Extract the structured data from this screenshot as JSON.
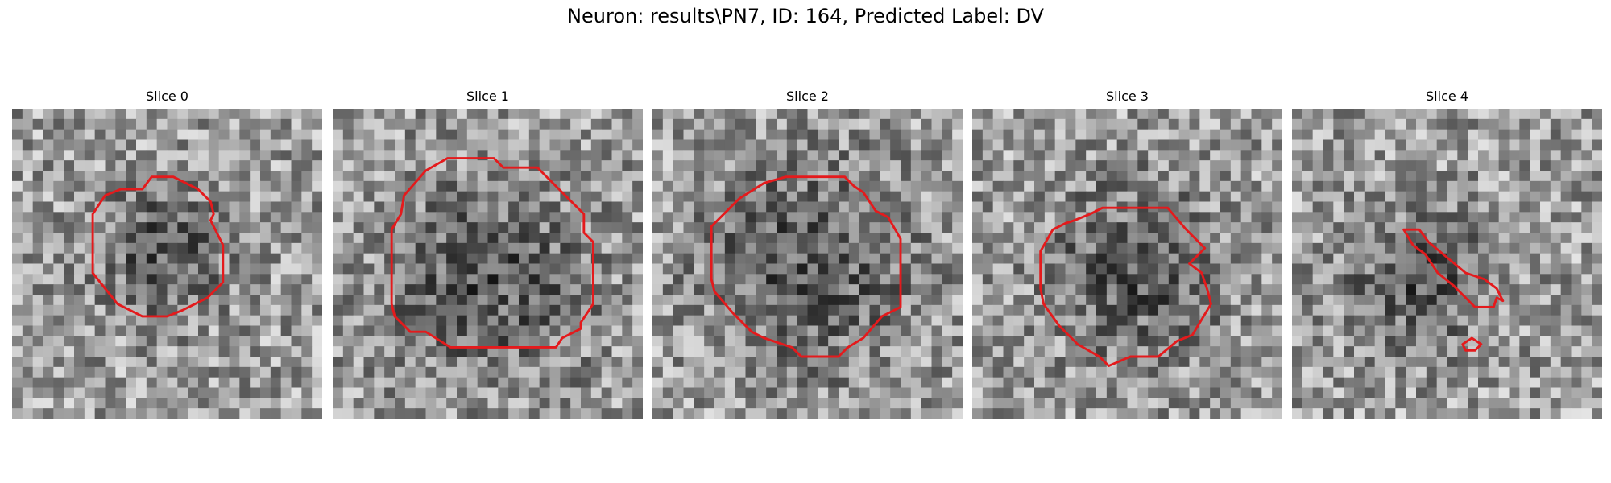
{
  "figure": {
    "title": "Neuron: results\\PN7, ID: 164, Predicted Label: DV",
    "contour_color": "#e41a1c",
    "panels": [
      {
        "title": "Slice 0",
        "seed": 11,
        "dark_blob": [
          0.48,
          0.46,
          0.2
        ],
        "contour": [
          [
            0.45,
            0.22
          ],
          [
            0.52,
            0.22
          ],
          [
            0.6,
            0.26
          ],
          [
            0.64,
            0.3
          ],
          [
            0.65,
            0.34
          ],
          [
            0.64,
            0.36
          ],
          [
            0.68,
            0.44
          ],
          [
            0.68,
            0.56
          ],
          [
            0.63,
            0.61
          ],
          [
            0.55,
            0.65
          ],
          [
            0.5,
            0.67
          ],
          [
            0.42,
            0.67
          ],
          [
            0.34,
            0.63
          ],
          [
            0.3,
            0.58
          ],
          [
            0.26,
            0.53
          ],
          [
            0.26,
            0.34
          ],
          [
            0.3,
            0.28
          ],
          [
            0.35,
            0.26
          ],
          [
            0.42,
            0.26
          ]
        ]
      },
      {
        "title": "Slice 1",
        "seed": 27,
        "dark_blob": [
          0.5,
          0.55,
          0.32
        ],
        "contour": [
          [
            0.37,
            0.16
          ],
          [
            0.52,
            0.16
          ],
          [
            0.55,
            0.19
          ],
          [
            0.66,
            0.19
          ],
          [
            0.72,
            0.25
          ],
          [
            0.81,
            0.34
          ],
          [
            0.81,
            0.4
          ],
          [
            0.84,
            0.43
          ],
          [
            0.84,
            0.63
          ],
          [
            0.8,
            0.69
          ],
          [
            0.8,
            0.71
          ],
          [
            0.74,
            0.74
          ],
          [
            0.72,
            0.77
          ],
          [
            0.67,
            0.77
          ],
          [
            0.6,
            0.77
          ],
          [
            0.51,
            0.77
          ],
          [
            0.38,
            0.77
          ],
          [
            0.3,
            0.72
          ],
          [
            0.25,
            0.72
          ],
          [
            0.2,
            0.67
          ],
          [
            0.19,
            0.63
          ],
          [
            0.19,
            0.39
          ],
          [
            0.22,
            0.34
          ],
          [
            0.23,
            0.28
          ],
          [
            0.3,
            0.2
          ]
        ]
      },
      {
        "title": "Slice 2",
        "seed": 43,
        "dark_blob": [
          0.5,
          0.5,
          0.32
        ],
        "contour": [
          [
            0.47,
            0.22
          ],
          [
            0.62,
            0.22
          ],
          [
            0.65,
            0.25
          ],
          [
            0.68,
            0.27
          ],
          [
            0.72,
            0.33
          ],
          [
            0.76,
            0.35
          ],
          [
            0.8,
            0.42
          ],
          [
            0.8,
            0.64
          ],
          [
            0.74,
            0.67
          ],
          [
            0.68,
            0.74
          ],
          [
            0.63,
            0.77
          ],
          [
            0.6,
            0.8
          ],
          [
            0.48,
            0.8
          ],
          [
            0.45,
            0.77
          ],
          [
            0.39,
            0.75
          ],
          [
            0.36,
            0.74
          ],
          [
            0.32,
            0.72
          ],
          [
            0.26,
            0.66
          ],
          [
            0.2,
            0.59
          ],
          [
            0.19,
            0.55
          ],
          [
            0.19,
            0.38
          ],
          [
            0.24,
            0.33
          ],
          [
            0.28,
            0.29
          ],
          [
            0.36,
            0.24
          ],
          [
            0.43,
            0.22
          ]
        ]
      },
      {
        "title": "Slice 3",
        "seed": 59,
        "dark_blob": [
          0.52,
          0.52,
          0.27
        ],
        "contour": [
          [
            0.42,
            0.32
          ],
          [
            0.63,
            0.32
          ],
          [
            0.69,
            0.39
          ],
          [
            0.75,
            0.45
          ],
          [
            0.7,
            0.5
          ],
          [
            0.74,
            0.53
          ],
          [
            0.76,
            0.59
          ],
          [
            0.77,
            0.63
          ],
          [
            0.74,
            0.68
          ],
          [
            0.71,
            0.73
          ],
          [
            0.66,
            0.75
          ],
          [
            0.6,
            0.8
          ],
          [
            0.51,
            0.8
          ],
          [
            0.44,
            0.83
          ],
          [
            0.41,
            0.8
          ],
          [
            0.34,
            0.76
          ],
          [
            0.28,
            0.7
          ],
          [
            0.23,
            0.63
          ],
          [
            0.22,
            0.58
          ],
          [
            0.22,
            0.46
          ],
          [
            0.26,
            0.39
          ],
          [
            0.3,
            0.37
          ],
          [
            0.33,
            0.36
          ],
          [
            0.38,
            0.34
          ]
        ]
      },
      {
        "title": "Slice 4",
        "seed": 71,
        "dark_blob": [
          0.4,
          0.55,
          0.22
        ],
        "contour": [
          [
            0.36,
            0.39
          ],
          [
            0.41,
            0.39
          ],
          [
            0.44,
            0.43
          ],
          [
            0.5,
            0.48
          ],
          [
            0.56,
            0.53
          ],
          [
            0.62,
            0.55
          ],
          [
            0.66,
            0.58
          ],
          [
            0.68,
            0.62
          ],
          [
            0.66,
            0.61
          ],
          [
            0.65,
            0.64
          ],
          [
            0.59,
            0.64
          ],
          [
            0.56,
            0.61
          ],
          [
            0.52,
            0.57
          ],
          [
            0.47,
            0.53
          ],
          [
            0.43,
            0.47
          ],
          [
            0.39,
            0.44
          ]
        ],
        "contour2": [
          [
            0.55,
            0.76
          ],
          [
            0.58,
            0.74
          ],
          [
            0.61,
            0.76
          ],
          [
            0.59,
            0.78
          ],
          [
            0.56,
            0.78
          ]
        ]
      }
    ]
  }
}
